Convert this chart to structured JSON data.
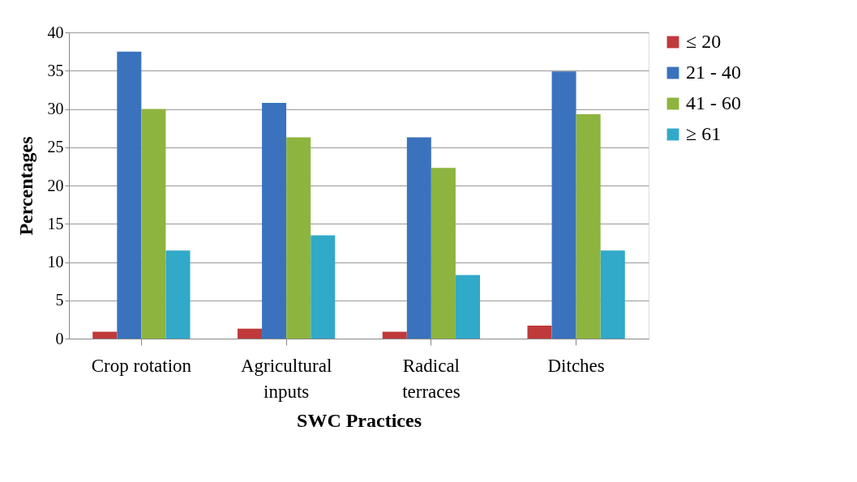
{
  "chart_data": {
    "type": "bar",
    "xlabel": "SWC Practices",
    "ylabel": "Percentages",
    "categories": [
      "Crop rotation",
      "Agricultural inputs",
      "Radical terraces",
      "Ditches"
    ],
    "series": [
      {
        "name": "≤ 20",
        "color": "#c0393b",
        "values": [
          0.9,
          1.3,
          0.9,
          1.7
        ]
      },
      {
        "name": "21 - 40",
        "color": "#3a72bd",
        "values": [
          37.5,
          30.8,
          26.3,
          34.9
        ]
      },
      {
        "name": "41 - 60",
        "color": "#8db43e",
        "values": [
          30.0,
          26.3,
          22.3,
          29.3
        ]
      },
      {
        "name": "≥ 61",
        "color": "#31a9c9",
        "values": [
          11.5,
          13.5,
          8.3,
          11.5
        ]
      }
    ],
    "ylim": [
      0,
      40
    ],
    "yticks": [
      0,
      5,
      10,
      15,
      20,
      25,
      30,
      35,
      40
    ],
    "grid": "y",
    "legend": "right"
  }
}
